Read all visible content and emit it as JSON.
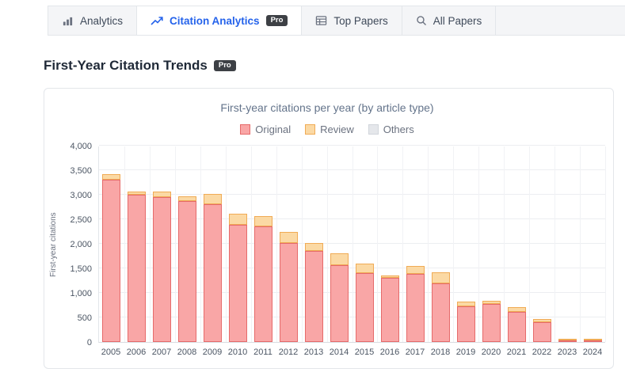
{
  "tabs": [
    {
      "label": "Analytics",
      "icon": "bar-chart-icon",
      "active": false
    },
    {
      "label": "Citation Analytics",
      "icon": "trend-line-icon",
      "active": true,
      "pro_label": "Pro"
    },
    {
      "label": "Top Papers",
      "icon": "table-icon",
      "active": false
    },
    {
      "label": "All Papers",
      "icon": "search-icon",
      "active": false
    }
  ],
  "page": {
    "heading": "First-Year Citation Trends",
    "pro_label": "Pro"
  },
  "colors": {
    "accent_blue": "#2563eb",
    "original_fill": "#f9a6a6",
    "original_stroke": "#e66a6a",
    "review_fill": "#fbd9a4",
    "review_stroke": "#f0ab55",
    "others_fill": "#e5e7eb",
    "others_stroke": "#d1d5db"
  },
  "chart_data": {
    "type": "bar",
    "stacked": true,
    "title": "First-year citations per year (by article type)",
    "xlabel": "",
    "ylabel": "First-year citations",
    "ylim": [
      0,
      4000
    ],
    "ytick_step": 500,
    "ytick_labels": [
      "0",
      "500",
      "1,000",
      "1,500",
      "2,000",
      "2,500",
      "3,000",
      "3,500",
      "4,000"
    ],
    "grid": true,
    "legend_position": "top",
    "categories": [
      "2005",
      "2006",
      "2007",
      "2008",
      "2009",
      "2010",
      "2011",
      "2012",
      "2013",
      "2014",
      "2015",
      "2016",
      "2017",
      "2018",
      "2019",
      "2020",
      "2021",
      "2022",
      "2023",
      "2024"
    ],
    "series": [
      {
        "name": "Original",
        "fill": "#f9a6a6",
        "stroke": "#e66a6a",
        "values": [
          3300,
          3000,
          2950,
          2870,
          2800,
          2380,
          2350,
          2020,
          1860,
          1570,
          1410,
          1300,
          1380,
          1200,
          730,
          780,
          620,
          400,
          30,
          15
        ]
      },
      {
        "name": "Review",
        "fill": "#fbd9a4",
        "stroke": "#f0ab55",
        "values": [
          120,
          70,
          110,
          100,
          220,
          240,
          220,
          230,
          150,
          240,
          180,
          60,
          170,
          220,
          95,
          60,
          85,
          65,
          10,
          5
        ]
      },
      {
        "name": "Others",
        "fill": "#e5e7eb",
        "stroke": "#d1d5db",
        "values": [
          0,
          0,
          0,
          0,
          0,
          0,
          0,
          0,
          0,
          0,
          0,
          0,
          0,
          0,
          0,
          0,
          0,
          0,
          0,
          0
        ]
      }
    ]
  }
}
